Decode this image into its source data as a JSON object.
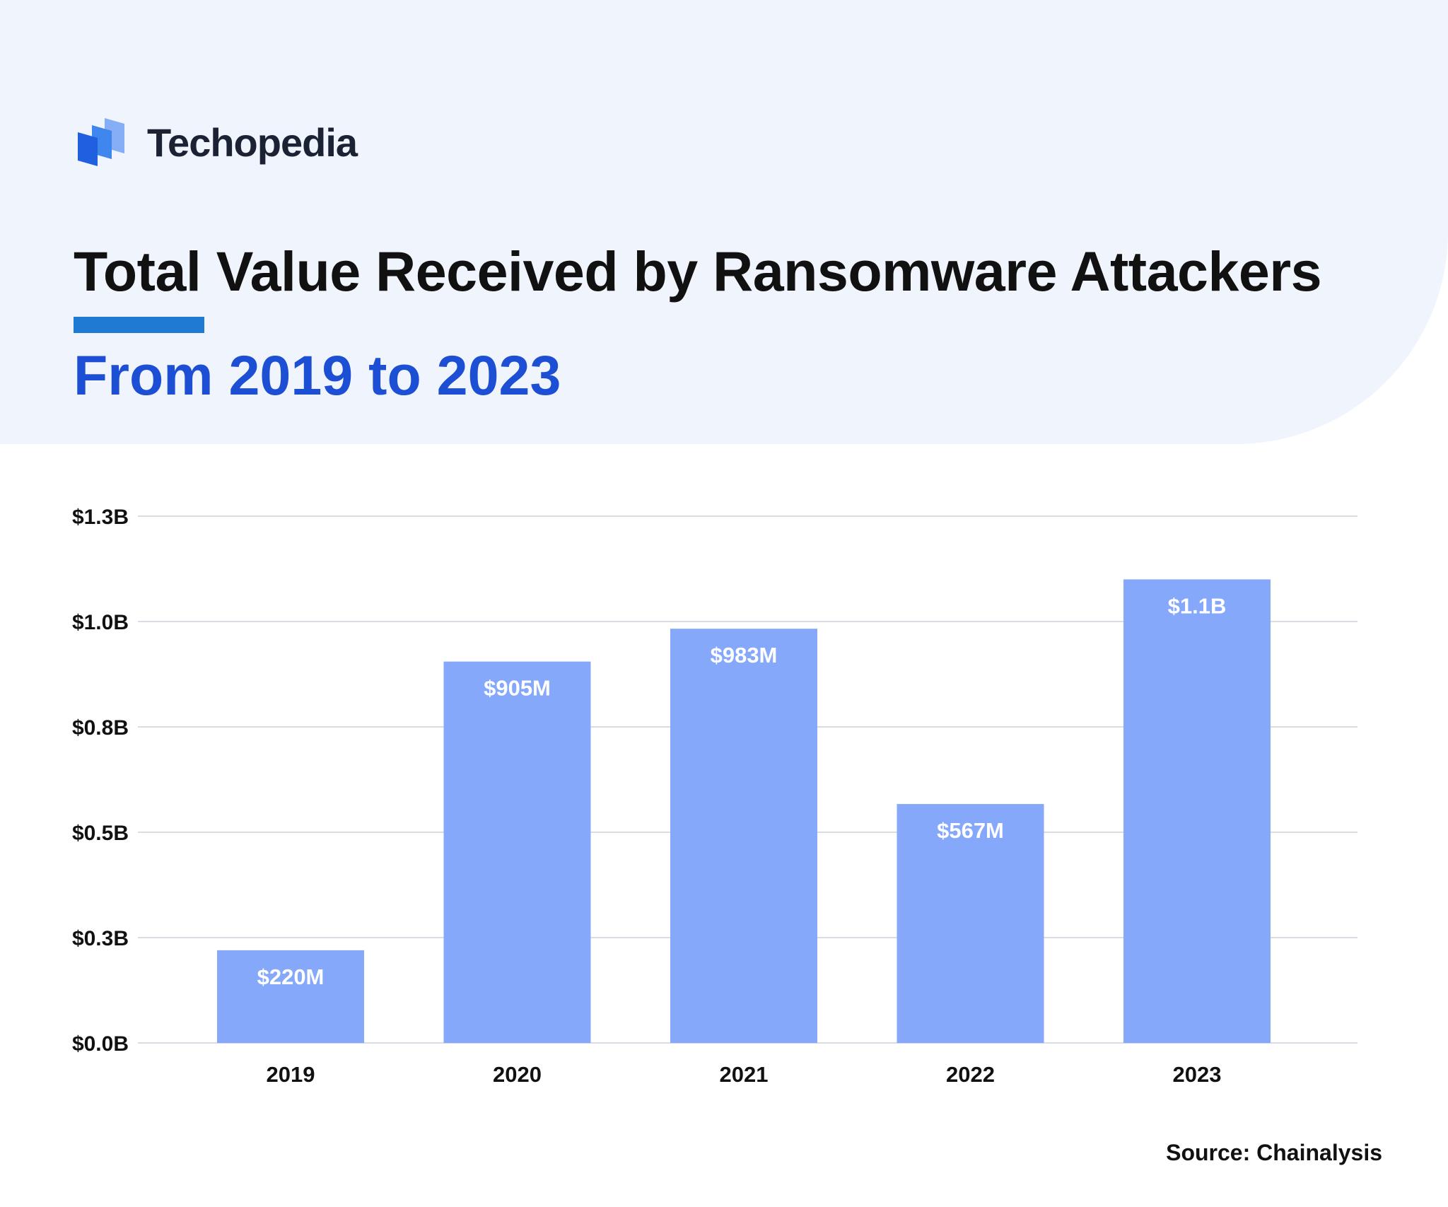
{
  "brand": {
    "name": "Techopedia",
    "logo_icon": "stacked-panels-icon",
    "logo_colors": [
      "#1f5fe0",
      "#3f86ee",
      "#86aef7"
    ]
  },
  "header": {
    "title": "Total Value Received by Ransomware Attackers",
    "subtitle": "From 2019 to 2023"
  },
  "colors": {
    "background_panel": "#f0f4fc",
    "accent": "#1f7ad3",
    "subtitle": "#1c4fd4",
    "bar": "#86a8fb",
    "grid": "#d9dde3",
    "text": "#111111"
  },
  "chart_data": {
    "type": "bar",
    "title": "Total Value Received by Ransomware Attackers",
    "subtitle": "From 2019 to 2023",
    "xlabel": "",
    "ylabel": "",
    "categories": [
      "2019",
      "2020",
      "2021",
      "2022",
      "2023"
    ],
    "values": [
      0.22,
      0.905,
      0.983,
      0.567,
      1.1
    ],
    "value_unit": "billion USD",
    "data_labels": [
      "$220M",
      "$905M",
      "$983M",
      "$567M",
      "$1.1B"
    ],
    "ylim": [
      0,
      1.25
    ],
    "y_ticks": [
      0,
      0.25,
      0.5,
      0.75,
      1.0,
      1.25
    ],
    "y_tick_labels": [
      "$0.0B",
      "$0.3B",
      "$0.5B",
      "$0.8B",
      "$1.0B",
      "$1.3B"
    ],
    "grid": true,
    "legend": "none"
  },
  "footer": {
    "source": "Source: Chainalysis"
  }
}
